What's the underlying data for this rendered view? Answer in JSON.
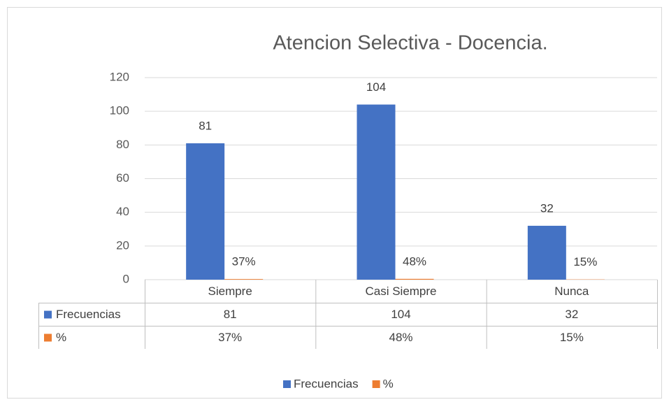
{
  "chart_data": {
    "type": "bar",
    "title": "Atencion Selectiva - Docencia.",
    "categories": [
      "Siempre",
      "Casi Siempre",
      "Nunca"
    ],
    "series": [
      {
        "name": "Frecuencias",
        "color": "#4472c4",
        "values": [
          81,
          104,
          32
        ]
      },
      {
        "name": "%",
        "color": "#ed7d31",
        "values": [
          0.37,
          0.48,
          0.15
        ],
        "value_labels": [
          "37%",
          "48%",
          "15%"
        ]
      }
    ],
    "ylim": [
      0,
      120
    ],
    "yticks": [
      0,
      20,
      40,
      60,
      80,
      100,
      120
    ],
    "grid": true,
    "legend": "bottom"
  }
}
